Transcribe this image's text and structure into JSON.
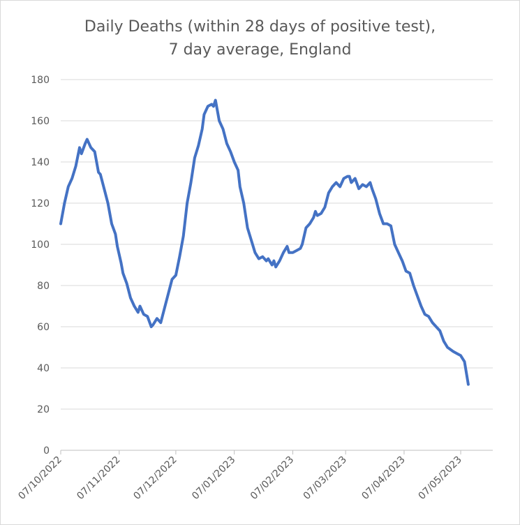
{
  "chart_data": {
    "type": "line",
    "title_line1": "Daily Deaths (within 28 days of positive test),",
    "title_line2": "7 day average, England",
    "xlabel": "",
    "ylabel": "",
    "ylim": [
      0,
      180
    ],
    "y_ticks": [
      0,
      20,
      40,
      60,
      80,
      100,
      120,
      140,
      160,
      180
    ],
    "x_range": [
      "2022-10-07",
      "2023-05-24"
    ],
    "x_ticks": [
      {
        "date": "2022-10-07",
        "label": "07/10/2022"
      },
      {
        "date": "2022-11-07",
        "label": "07/11/2022"
      },
      {
        "date": "2022-12-07",
        "label": "07/12/2022"
      },
      {
        "date": "2023-01-07",
        "label": "07/01/2023"
      },
      {
        "date": "2023-02-07",
        "label": "07/02/2023"
      },
      {
        "date": "2023-03-07",
        "label": "07/03/2023"
      },
      {
        "date": "2023-04-07",
        "label": "07/04/2023"
      },
      {
        "date": "2023-05-07",
        "label": "07/05/2023"
      }
    ],
    "grid": "horizontal",
    "line_color": "#4472c4",
    "series": [
      {
        "points": [
          [
            "2022-10-07",
            110
          ],
          [
            "2022-10-09",
            120
          ],
          [
            "2022-10-11",
            128
          ],
          [
            "2022-10-13",
            132
          ],
          [
            "2022-10-15",
            138
          ],
          [
            "2022-10-17",
            147
          ],
          [
            "2022-10-18",
            144
          ],
          [
            "2022-10-20",
            149
          ],
          [
            "2022-10-21",
            151
          ],
          [
            "2022-10-23",
            147
          ],
          [
            "2022-10-25",
            145
          ],
          [
            "2022-10-27",
            135
          ],
          [
            "2022-10-28",
            134
          ],
          [
            "2022-10-30",
            127
          ],
          [
            "2022-11-01",
            120
          ],
          [
            "2022-11-03",
            110
          ],
          [
            "2022-11-05",
            105
          ],
          [
            "2022-11-06",
            99
          ],
          [
            "2022-11-08",
            91
          ],
          [
            "2022-11-09",
            86
          ],
          [
            "2022-11-11",
            81
          ],
          [
            "2022-11-13",
            74
          ],
          [
            "2022-11-15",
            70
          ],
          [
            "2022-11-17",
            67
          ],
          [
            "2022-11-18",
            70
          ],
          [
            "2022-11-19",
            68
          ],
          [
            "2022-11-20",
            66
          ],
          [
            "2022-11-22",
            65
          ],
          [
            "2022-11-24",
            60
          ],
          [
            "2022-11-25",
            61
          ],
          [
            "2022-11-27",
            64
          ],
          [
            "2022-11-29",
            62
          ],
          [
            "2022-12-01",
            69
          ],
          [
            "2022-12-03",
            76
          ],
          [
            "2022-12-05",
            83
          ],
          [
            "2022-12-07",
            85
          ],
          [
            "2022-12-09",
            94
          ],
          [
            "2022-12-11",
            104
          ],
          [
            "2022-12-13",
            120
          ],
          [
            "2022-12-15",
            130
          ],
          [
            "2022-12-17",
            142
          ],
          [
            "2022-12-19",
            148
          ],
          [
            "2022-12-21",
            156
          ],
          [
            "2022-12-22",
            163
          ],
          [
            "2022-12-24",
            167
          ],
          [
            "2022-12-26",
            168
          ],
          [
            "2022-12-27",
            167
          ],
          [
            "2022-12-28",
            170
          ],
          [
            "2022-12-30",
            160
          ],
          [
            "2023-01-01",
            156
          ],
          [
            "2023-01-03",
            149
          ],
          [
            "2023-01-05",
            145
          ],
          [
            "2023-01-07",
            140
          ],
          [
            "2023-01-09",
            136
          ],
          [
            "2023-01-10",
            128
          ],
          [
            "2023-01-12",
            120
          ],
          [
            "2023-01-14",
            108
          ],
          [
            "2023-01-16",
            102
          ],
          [
            "2023-01-18",
            96
          ],
          [
            "2023-01-20",
            93
          ],
          [
            "2023-01-22",
            94
          ],
          [
            "2023-01-24",
            92
          ],
          [
            "2023-01-25",
            93
          ],
          [
            "2023-01-27",
            90
          ],
          [
            "2023-01-28",
            92
          ],
          [
            "2023-01-29",
            89
          ],
          [
            "2023-01-31",
            92
          ],
          [
            "2023-02-02",
            96
          ],
          [
            "2023-02-04",
            99
          ],
          [
            "2023-02-05",
            96
          ],
          [
            "2023-02-07",
            96
          ],
          [
            "2023-02-09",
            97
          ],
          [
            "2023-02-11",
            98
          ],
          [
            "2023-02-12",
            100
          ],
          [
            "2023-02-14",
            108
          ],
          [
            "2023-02-16",
            110
          ],
          [
            "2023-02-18",
            113
          ],
          [
            "2023-02-19",
            116
          ],
          [
            "2023-02-20",
            114
          ],
          [
            "2023-02-22",
            115
          ],
          [
            "2023-02-24",
            118
          ],
          [
            "2023-02-26",
            125
          ],
          [
            "2023-02-28",
            128
          ],
          [
            "2023-03-02",
            130
          ],
          [
            "2023-03-04",
            128
          ],
          [
            "2023-03-06",
            132
          ],
          [
            "2023-03-08",
            133
          ],
          [
            "2023-03-09",
            133
          ],
          [
            "2023-03-10",
            130
          ],
          [
            "2023-03-12",
            132
          ],
          [
            "2023-03-14",
            127
          ],
          [
            "2023-03-16",
            129
          ],
          [
            "2023-03-18",
            128
          ],
          [
            "2023-03-20",
            130
          ],
          [
            "2023-03-21",
            127
          ],
          [
            "2023-03-23",
            122
          ],
          [
            "2023-03-25",
            115
          ],
          [
            "2023-03-27",
            110
          ],
          [
            "2023-03-29",
            110
          ],
          [
            "2023-03-31",
            109
          ],
          [
            "2023-04-02",
            100
          ],
          [
            "2023-04-04",
            96
          ],
          [
            "2023-04-06",
            92
          ],
          [
            "2023-04-08",
            87
          ],
          [
            "2023-04-10",
            86
          ],
          [
            "2023-04-12",
            80
          ],
          [
            "2023-04-14",
            75
          ],
          [
            "2023-04-16",
            70
          ],
          [
            "2023-04-18",
            66
          ],
          [
            "2023-04-20",
            65
          ],
          [
            "2023-04-22",
            62
          ],
          [
            "2023-04-24",
            60
          ],
          [
            "2023-04-26",
            58
          ],
          [
            "2023-04-28",
            53
          ],
          [
            "2023-04-30",
            50
          ],
          [
            "2023-05-03",
            48
          ],
          [
            "2023-05-05",
            47
          ],
          [
            "2023-05-07",
            46
          ],
          [
            "2023-05-09",
            43
          ],
          [
            "2023-05-11",
            32
          ]
        ]
      }
    ]
  }
}
